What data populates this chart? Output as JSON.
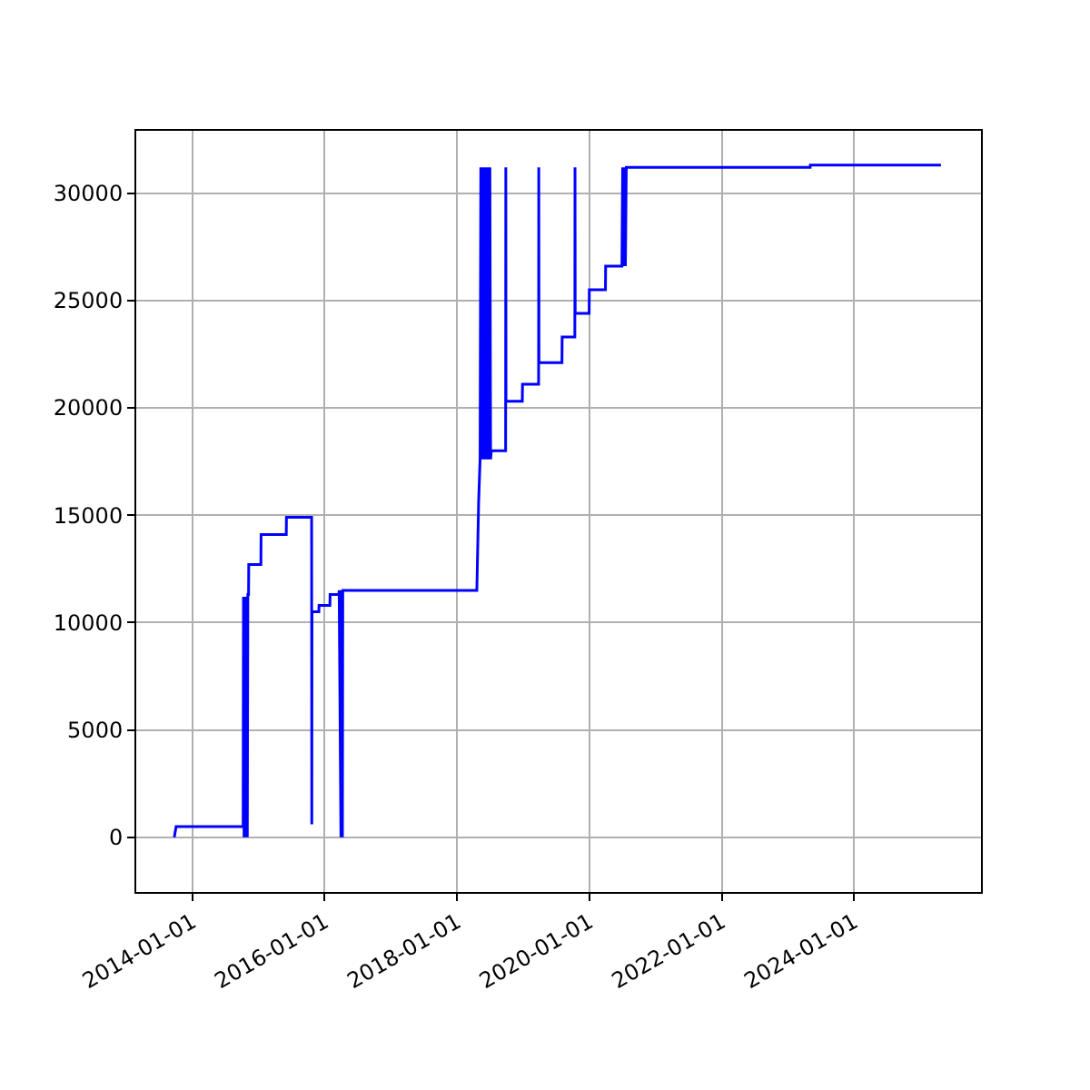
{
  "chart_data": {
    "type": "line",
    "color": "#0000ff",
    "grid": true,
    "marker": "none",
    "line_style": "solid",
    "xlim": [
      "2013-02-25",
      "2025-12-02"
    ],
    "xticks": [
      {
        "value": "2014-01-01",
        "label": "2014-01-01"
      },
      {
        "value": "2016-01-01",
        "label": "2016-01-01"
      },
      {
        "value": "2018-01-01",
        "label": "2018-01-01"
      },
      {
        "value": "2020-01-01",
        "label": "2020-01-01"
      },
      {
        "value": "2022-01-01",
        "label": "2022-01-01"
      },
      {
        "value": "2024-01-01",
        "label": "2024-01-01"
      }
    ],
    "ylim": [
      -2550,
      32900
    ],
    "yticks": [
      0,
      5000,
      10000,
      15000,
      20000,
      25000,
      30000
    ],
    "x": [
      "2013-09-23",
      "2013-10-03",
      "2014-10-08",
      "2014-10-10",
      "2014-10-13",
      "2014-10-16",
      "2014-10-19",
      "2014-10-22",
      "2014-10-25",
      "2014-10-28",
      "2014-10-31",
      "2014-11-03",
      "2014-11-07",
      "2014-11-08",
      "2015-01-14",
      "2015-01-15",
      "2015-06-03",
      "2015-06-04",
      "2015-10-21",
      "2015-10-22",
      "2015-10-23",
      "2015-11-30",
      "2015-12-01",
      "2016-01-30",
      "2016-01-31",
      "2016-03-20",
      "2016-03-21",
      "2016-03-31",
      "2016-04-05",
      "2016-04-08",
      "2016-04-10",
      "2018-04-20",
      "2018-04-30",
      "2018-05-08",
      "2018-05-12",
      "2018-05-17",
      "2018-05-22",
      "2018-05-27",
      "2018-06-01",
      "2018-06-06",
      "2018-06-11",
      "2018-06-16",
      "2018-06-21",
      "2018-06-26",
      "2018-07-01",
      "2018-07-05",
      "2018-07-09",
      "2018-09-26",
      "2018-09-27",
      "2018-09-28",
      "2018-12-27",
      "2018-12-28",
      "2019-03-27",
      "2019-03-28",
      "2019-03-29",
      "2019-08-03",
      "2019-08-04",
      "2019-10-13",
      "2019-10-14",
      "2019-10-15",
      "2019-12-31",
      "2020-01-01",
      "2020-03-30",
      "2020-03-31",
      "2020-06-29",
      "2020-07-03",
      "2020-07-08",
      "2020-07-13",
      "2020-07-18",
      "2020-07-23",
      "2020-07-29",
      "2023-05-04",
      "2023-05-05",
      "2025-04-25"
    ],
    "values": [
      0,
      500,
      500,
      11200,
      0,
      11200,
      0,
      11200,
      0,
      11200,
      0,
      11300,
      11300,
      12700,
      12700,
      14100,
      14100,
      14900,
      14900,
      600,
      10500,
      10500,
      10800,
      10800,
      11300,
      11300,
      11500,
      0,
      11500,
      0,
      11500,
      11500,
      15600,
      17600,
      31200,
      17600,
      31200,
      17600,
      31200,
      17600,
      31200,
      17600,
      31200,
      17600,
      31200,
      17600,
      18000,
      18000,
      31200,
      20300,
      20300,
      21100,
      21100,
      31200,
      22100,
      22100,
      23300,
      23300,
      31200,
      24400,
      24400,
      25500,
      25500,
      26600,
      26600,
      31200,
      26600,
      31200,
      26600,
      31200,
      31200,
      31200,
      31300,
      31300
    ]
  }
}
